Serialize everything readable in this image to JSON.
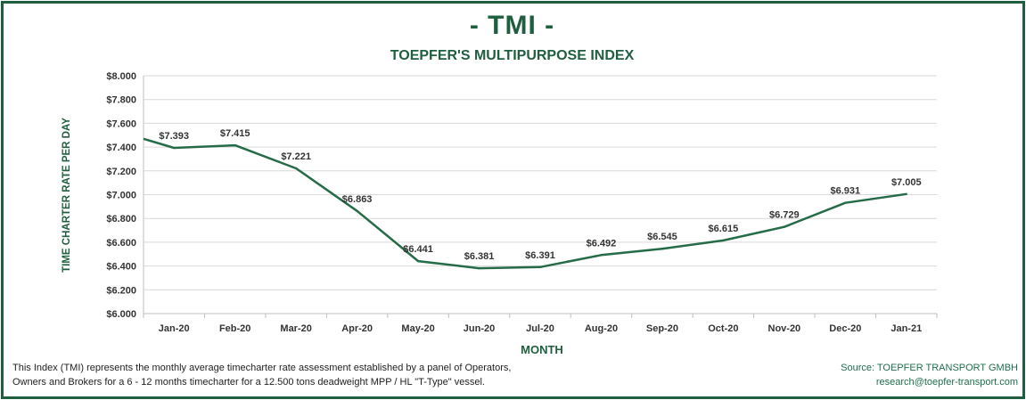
{
  "header": {
    "title": "- TMI -",
    "subtitle": "TOEPFER'S MULTIPURPOSE INDEX"
  },
  "colors": {
    "brand": "#1f5f3f",
    "line": "#256b48",
    "grid": "#d9d9d9",
    "axis_text": "#333333"
  },
  "chart_data": {
    "type": "line",
    "title": "TOEPFER'S MULTIPURPOSE INDEX",
    "xlabel": "MONTH",
    "ylabel": "TIME CHARTER RATE PER DAY",
    "ylim": [
      6000,
      8000
    ],
    "yticks": [
      6000,
      6200,
      6400,
      6600,
      6800,
      7000,
      7200,
      7400,
      7600,
      7800,
      8000
    ],
    "ytick_labels": [
      "$6.000",
      "$6.200",
      "$6.400",
      "$6.600",
      "$6.800",
      "$7.000",
      "$7.200",
      "$7.400",
      "$7.600",
      "$7.800",
      "$8.000"
    ],
    "grid": true,
    "start_value": 7470,
    "categories": [
      "Jan-20",
      "Feb-20",
      "Mar-20",
      "Apr-20",
      "May-20",
      "Jun-20",
      "Jul-20",
      "Aug-20",
      "Sep-20",
      "Oct-20",
      "Nov-20",
      "Dec-20",
      "Jan-21"
    ],
    "series": [
      {
        "name": "TMI",
        "values": [
          7393,
          7415,
          7221,
          6863,
          6441,
          6381,
          6391,
          6492,
          6545,
          6615,
          6729,
          6931,
          7005
        ],
        "labels": [
          "$7.393",
          "$7.415",
          "$7.221",
          "$6.863",
          "$6.441",
          "$6.381",
          "$6.391",
          "$6.492",
          "$6.545",
          "$6.615",
          "$6.729",
          "$6.931",
          "$7.005"
        ]
      }
    ]
  },
  "footer": {
    "note_line1": "This Index (TMI) represents the monthly average timecharter rate assessment established by a panel of Operators,",
    "note_line2": "Owners and Brokers for a 6 - 12 months timecharter for a 12.500 tons deadweight MPP / HL \"T-Type\" vessel.",
    "source_line1": "Source: TOEPFER TRANSPORT GMBH",
    "source_line2": "research@toepfer-transport.com"
  }
}
